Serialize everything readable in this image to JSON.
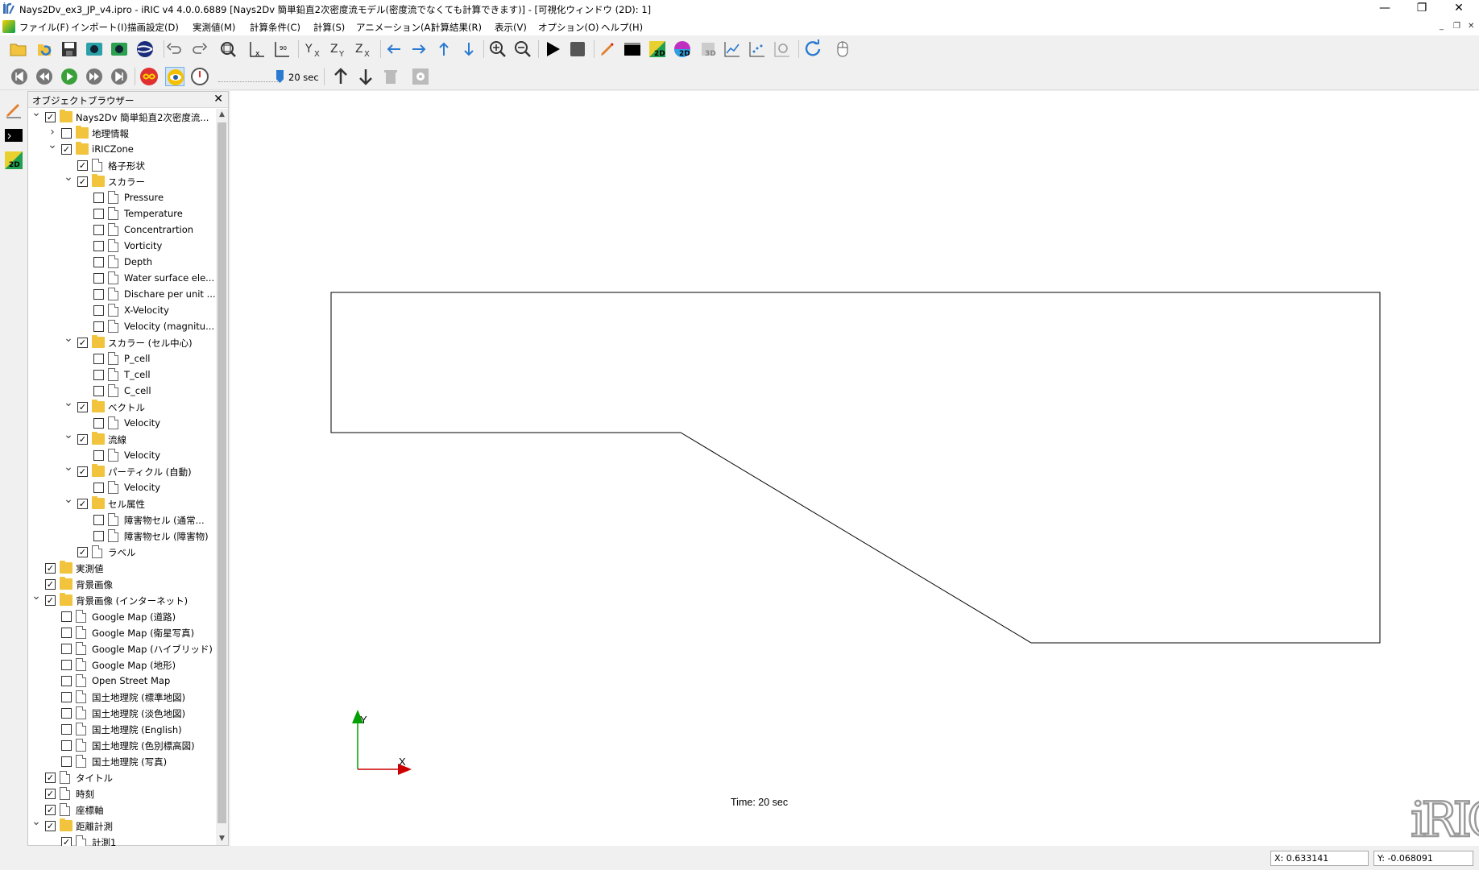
{
  "window": {
    "title": "Nays2Dv_ex3_JP_v4.ipro - iRIC v4 4.0.0.6889 [Nays2Dv 簡単鉛直2次密度流モデル(密度流でなくても計算できます)] - [可視化ウィンドウ (2D): 1]",
    "minimize": "—",
    "restore": "❐",
    "close": "✕"
  },
  "menu": {
    "items": [
      "ファイル(F)",
      "インポート(I)",
      "描画設定(D)",
      "実測値(M)",
      "計算条件(C)",
      "計算(S)",
      "アニメーション(A)",
      "計算結果(R)",
      "表示(V)",
      "オプション(O)",
      "ヘルプ(H)"
    ],
    "mdi_min": "_",
    "mdi_restore": "❐",
    "mdi_close": "✕"
  },
  "animation": {
    "time_label": "20 sec",
    "slider_position": 1.0
  },
  "object_browser": {
    "title": "オブジェクトブラウザー",
    "close": "✕",
    "scroll_up": "▲",
    "scroll_down": "▼",
    "tree": [
      {
        "level": 0,
        "expander": "open",
        "checked": true,
        "icon": "folder",
        "label": "Nays2Dv 簡単鉛直2次密度流..."
      },
      {
        "level": 1,
        "expander": "closed",
        "checked": false,
        "icon": "folder",
        "label": "地理情報"
      },
      {
        "level": 1,
        "expander": "open",
        "checked": true,
        "icon": "folder",
        "label": "iRICZone"
      },
      {
        "level": 2,
        "expander": "none",
        "checked": true,
        "icon": "file",
        "label": "格子形状"
      },
      {
        "level": 2,
        "expander": "open",
        "checked": true,
        "icon": "folder",
        "label": "スカラー"
      },
      {
        "level": 3,
        "expander": "none",
        "checked": false,
        "icon": "file",
        "label": "Pressure"
      },
      {
        "level": 3,
        "expander": "none",
        "checked": false,
        "icon": "file",
        "label": "Temperature"
      },
      {
        "level": 3,
        "expander": "none",
        "checked": false,
        "icon": "file",
        "label": "Concentrartion"
      },
      {
        "level": 3,
        "expander": "none",
        "checked": false,
        "icon": "file",
        "label": "Vorticity"
      },
      {
        "level": 3,
        "expander": "none",
        "checked": false,
        "icon": "file",
        "label": "Depth"
      },
      {
        "level": 3,
        "expander": "none",
        "checked": false,
        "icon": "file",
        "label": "Water surface ele..."
      },
      {
        "level": 3,
        "expander": "none",
        "checked": false,
        "icon": "file",
        "label": "Dischare per unit ..."
      },
      {
        "level": 3,
        "expander": "none",
        "checked": false,
        "icon": "file",
        "label": "X-Velocity"
      },
      {
        "level": 3,
        "expander": "none",
        "checked": false,
        "icon": "file",
        "label": "Velocity (magnitu..."
      },
      {
        "level": 2,
        "expander": "open",
        "checked": true,
        "icon": "folder",
        "label": "スカラー (セル中心)"
      },
      {
        "level": 3,
        "expander": "none",
        "checked": false,
        "icon": "file",
        "label": "P_cell"
      },
      {
        "level": 3,
        "expander": "none",
        "checked": false,
        "icon": "file",
        "label": "T_cell"
      },
      {
        "level": 3,
        "expander": "none",
        "checked": false,
        "icon": "file",
        "label": "C_cell"
      },
      {
        "level": 2,
        "expander": "open",
        "checked": true,
        "icon": "folder",
        "label": "ベクトル"
      },
      {
        "level": 3,
        "expander": "none",
        "checked": false,
        "icon": "file",
        "label": "Velocity"
      },
      {
        "level": 2,
        "expander": "open",
        "checked": true,
        "icon": "folder",
        "label": "流線"
      },
      {
        "level": 3,
        "expander": "none",
        "checked": false,
        "icon": "file",
        "label": "Velocity"
      },
      {
        "level": 2,
        "expander": "open",
        "checked": true,
        "icon": "folder",
        "label": "パーティクル (自動)"
      },
      {
        "level": 3,
        "expander": "none",
        "checked": false,
        "icon": "file",
        "label": "Velocity"
      },
      {
        "level": 2,
        "expander": "open",
        "checked": true,
        "icon": "folder",
        "label": "セル属性"
      },
      {
        "level": 3,
        "expander": "none",
        "checked": false,
        "icon": "file",
        "label": "障害物セル (通常..."
      },
      {
        "level": 3,
        "expander": "none",
        "checked": false,
        "icon": "file",
        "label": "障害物セル (障害物)"
      },
      {
        "level": 2,
        "expander": "none",
        "checked": true,
        "icon": "file",
        "label": "ラベル"
      },
      {
        "level": 0,
        "expander": "none",
        "checked": true,
        "icon": "folder",
        "label": "実測値"
      },
      {
        "level": 0,
        "expander": "none",
        "checked": true,
        "icon": "folder",
        "label": "背景画像"
      },
      {
        "level": 0,
        "expander": "open",
        "checked": true,
        "icon": "folder",
        "label": "背景画像 (インターネット)"
      },
      {
        "level": 1,
        "expander": "none",
        "checked": false,
        "icon": "file",
        "label": "Google Map (道路)"
      },
      {
        "level": 1,
        "expander": "none",
        "checked": false,
        "icon": "file",
        "label": "Google Map (衛星写真)"
      },
      {
        "level": 1,
        "expander": "none",
        "checked": false,
        "icon": "file",
        "label": "Google Map (ハイブリッド)"
      },
      {
        "level": 1,
        "expander": "none",
        "checked": false,
        "icon": "file",
        "label": "Google Map (地形)"
      },
      {
        "level": 1,
        "expander": "none",
        "checked": false,
        "icon": "file",
        "label": "Open Street Map"
      },
      {
        "level": 1,
        "expander": "none",
        "checked": false,
        "icon": "file",
        "label": "国土地理院 (標準地図)"
      },
      {
        "level": 1,
        "expander": "none",
        "checked": false,
        "icon": "file",
        "label": "国土地理院 (淡色地図)"
      },
      {
        "level": 1,
        "expander": "none",
        "checked": false,
        "icon": "file",
        "label": "国土地理院 (English)"
      },
      {
        "level": 1,
        "expander": "none",
        "checked": false,
        "icon": "file",
        "label": "国土地理院 (色別標高図)"
      },
      {
        "level": 1,
        "expander": "none",
        "checked": false,
        "icon": "file",
        "label": "国土地理院 (写真)"
      },
      {
        "level": 0,
        "expander": "none",
        "checked": true,
        "icon": "file",
        "label": "タイトル"
      },
      {
        "level": 0,
        "expander": "none",
        "checked": true,
        "icon": "file",
        "label": "時刻"
      },
      {
        "level": 0,
        "expander": "none",
        "checked": true,
        "icon": "file",
        "label": "座標軸"
      },
      {
        "level": 0,
        "expander": "open",
        "checked": true,
        "icon": "folder",
        "label": "距離計測"
      },
      {
        "level": 1,
        "expander": "none",
        "checked": true,
        "icon": "file",
        "label": "計測1"
      }
    ]
  },
  "canvas": {
    "time_text": "Time: 20 sec",
    "axis_x_label": "X",
    "axis_y_label": "Y",
    "logo_text": "iRIC"
  },
  "status": {
    "x": "X: 0.633141",
    "y": "Y: -0.068091"
  },
  "colors": {
    "axis_x": "#cc0000",
    "axis_y": "#00a000",
    "grid_outline": "#000000",
    "logo": "#9a9a9a"
  }
}
